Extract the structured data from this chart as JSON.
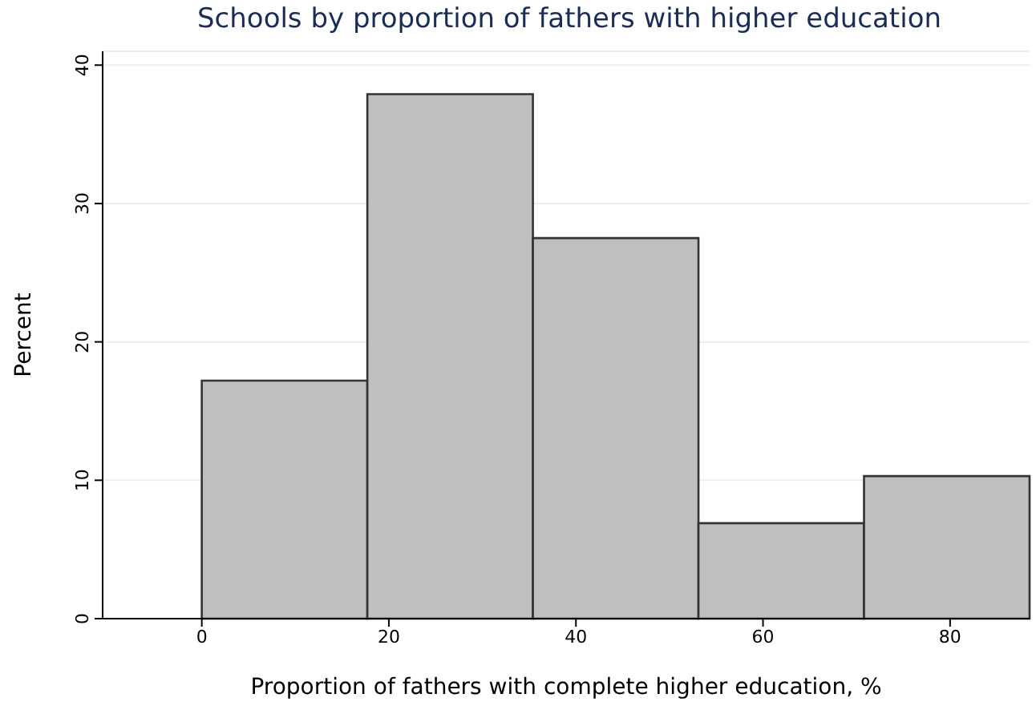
{
  "chart_data": {
    "type": "histogram",
    "title": "Schools by proportion of fathers with higher education",
    "xlabel": "Proportion of fathers with complete higher education, %",
    "ylabel": "Percent",
    "bins": [
      0,
      17.7,
      35.4,
      53.1,
      70.8,
      88.5
    ],
    "values": [
      17.2,
      37.9,
      27.5,
      6.9,
      10.3
    ],
    "color": "#bfbfbf",
    "xlim": [
      -10.6,
      88.5
    ],
    "xticks": [
      0,
      20,
      40,
      60,
      80
    ],
    "ylim": [
      0,
      41
    ],
    "yticks": [
      0,
      10,
      20,
      30,
      40
    ],
    "grid": "y"
  }
}
